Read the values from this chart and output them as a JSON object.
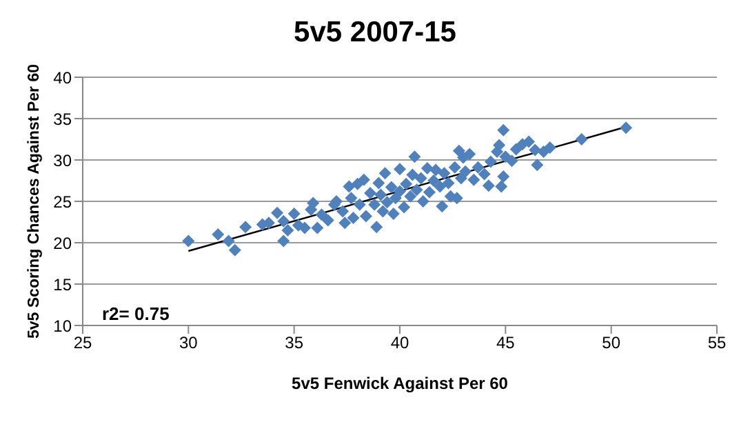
{
  "chart_data": {
    "type": "scatter",
    "title": "5v5 2007-15",
    "xlabel": "5v5 Fenwick Against  Per 60",
    "ylabel": "5v5 Scoring Chances  Against  Per 60",
    "xlim": [
      25,
      55
    ],
    "xticks": [
      25,
      30,
      35,
      40,
      45,
      50,
      55
    ],
    "ylim": [
      10,
      40
    ],
    "yticks": [
      10,
      15,
      20,
      25,
      30,
      35,
      40
    ],
    "grid": "y",
    "marker": "diamond",
    "annotations": [
      "r2= 0.75"
    ],
    "series": [
      {
        "color": "#4f81bd",
        "x": [
          30.0,
          31.4,
          31.9,
          32.2,
          32.7,
          33.5,
          33.8,
          34.2,
          34.5,
          34.5,
          34.7,
          35.0,
          35.2,
          35.5,
          35.8,
          35.9,
          36.1,
          36.3,
          36.6,
          36.9,
          37.0,
          37.3,
          37.4,
          37.6,
          37.7,
          37.8,
          38.0,
          38.1,
          38.3,
          38.4,
          38.6,
          38.8,
          38.9,
          39.0,
          39.1,
          39.2,
          39.3,
          39.4,
          39.6,
          39.7,
          39.8,
          40.0,
          40.0,
          40.2,
          40.3,
          40.5,
          40.6,
          40.7,
          40.8,
          41.0,
          41.1,
          41.3,
          41.4,
          41.6,
          41.7,
          41.9,
          42.0,
          42.1,
          42.3,
          42.4,
          42.6,
          42.7,
          42.8,
          42.9,
          43.0,
          43.1,
          43.3,
          43.5,
          43.7,
          44.0,
          44.2,
          44.3,
          44.6,
          44.7,
          44.8,
          44.9,
          44.9,
          45.0,
          45.3,
          45.5,
          45.8,
          46.1,
          46.4,
          46.5,
          46.8,
          47.1,
          48.6,
          50.7
        ],
        "values": [
          20.2,
          21.0,
          20.2,
          19.1,
          21.9,
          22.2,
          22.4,
          23.6,
          22.6,
          20.2,
          21.5,
          23.5,
          22.1,
          21.8,
          24.0,
          24.8,
          21.8,
          23.4,
          22.7,
          24.6,
          25.0,
          23.8,
          22.4,
          26.8,
          25.4,
          23.0,
          27.1,
          24.6,
          27.6,
          23.2,
          26.0,
          24.6,
          21.9,
          27.2,
          25.8,
          23.8,
          28.4,
          24.9,
          26.7,
          23.5,
          25.4,
          28.9,
          26.2,
          24.3,
          27.1,
          25.6,
          28.2,
          30.4,
          26.4,
          27.8,
          25.0,
          29.0,
          26.1,
          27.5,
          28.8,
          26.8,
          24.4,
          28.4,
          27.2,
          25.6,
          29.1,
          25.4,
          31.1,
          27.8,
          30.3,
          28.6,
          30.7,
          27.6,
          29.1,
          28.3,
          26.9,
          29.8,
          31.0,
          31.8,
          26.8,
          28.0,
          33.6,
          30.4,
          29.9,
          31.3,
          31.9,
          32.2,
          31.2,
          29.4,
          31.0,
          31.5,
          32.5,
          33.9
        ]
      },
      {
        "type": "line",
        "color": "#000000",
        "marker": "none",
        "x": [
          30.0,
          50.7
        ],
        "values": [
          19.0,
          34.0
        ]
      }
    ]
  }
}
